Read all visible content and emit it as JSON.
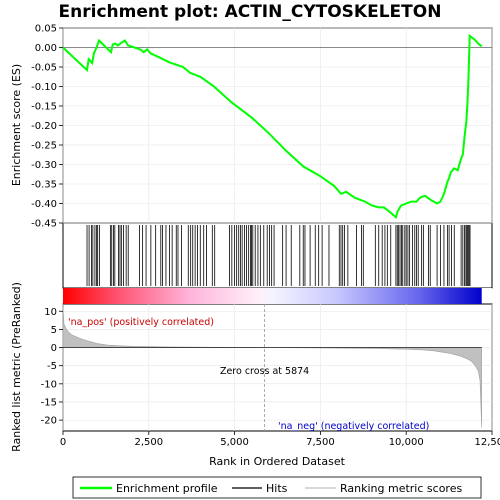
{
  "chart_data": {
    "type": "line",
    "title": "Enrichment plot: ACTIN_CYTOSKELETON",
    "xlabel": "Rank in Ordered Dataset",
    "ylabel_top": "Enrichment score (ES)",
    "ylabel_bottom": "Ranked list metric (PreRanked)",
    "xlim": [
      0,
      12500
    ],
    "x_ticks": [
      0,
      2500,
      5000,
      7500,
      10000,
      12500
    ],
    "x_tick_labels": [
      "0",
      "2,500",
      "5,000",
      "7,500",
      "10,000",
      "12,500"
    ],
    "es_ylim": [
      -0.45,
      0.05
    ],
    "es_ticks": [
      0.05,
      0.0,
      -0.05,
      -0.1,
      -0.15,
      -0.2,
      -0.25,
      -0.3,
      -0.35,
      -0.4,
      -0.45
    ],
    "es_tick_labels": [
      "0.05",
      "0.00",
      "-0.05",
      "-0.10",
      "-0.15",
      "-0.20",
      "-0.25",
      "-0.30",
      "-0.35",
      "-0.40",
      "-0.45"
    ],
    "metric_ylim": [
      -23,
      12
    ],
    "metric_ticks": [
      10,
      5,
      0,
      -5,
      -10,
      -15,
      -20
    ],
    "metric_tick_labels": [
      "10",
      "5",
      "0",
      "-5",
      "-10",
      "-15",
      "-20"
    ],
    "enrichment_profile": {
      "name": "Enrichment profile",
      "color": "#00ff00",
      "x": [
        0,
        700,
        750,
        850,
        900,
        980,
        1050,
        1400,
        1450,
        1520,
        1600,
        1700,
        1800,
        1900,
        2250,
        2350,
        2450,
        2550,
        2800,
        3100,
        3500,
        3700,
        4000,
        4400,
        4900,
        5500,
        6000,
        6500,
        7000,
        7500,
        7900,
        8100,
        8250,
        8500,
        8800,
        9000,
        9200,
        9350,
        9500,
        9700,
        9750,
        9850,
        10000,
        10150,
        10300,
        10400,
        10550,
        10700,
        10900,
        11000,
        11100,
        11200,
        11250,
        11300,
        11400,
        11500,
        11600,
        11650,
        11700,
        11750,
        11780,
        11800,
        11820,
        11850,
        12000,
        12100,
        12200
      ],
      "y": [
        0.0,
        -0.058,
        -0.03,
        -0.04,
        -0.015,
        0.0,
        0.018,
        -0.012,
        0.008,
        0.01,
        0.005,
        0.012,
        0.018,
        0.005,
        -0.005,
        -0.012,
        -0.005,
        -0.015,
        -0.025,
        -0.038,
        -0.05,
        -0.065,
        -0.075,
        -0.1,
        -0.14,
        -0.18,
        -0.22,
        -0.265,
        -0.305,
        -0.33,
        -0.355,
        -0.375,
        -0.37,
        -0.385,
        -0.395,
        -0.405,
        -0.41,
        -0.41,
        -0.42,
        -0.435,
        -0.42,
        -0.405,
        -0.4,
        -0.395,
        -0.395,
        -0.385,
        -0.38,
        -0.39,
        -0.4,
        -0.395,
        -0.375,
        -0.345,
        -0.335,
        -0.32,
        -0.31,
        -0.315,
        -0.285,
        -0.275,
        -0.23,
        -0.19,
        -0.15,
        -0.11,
        -0.06,
        0.03,
        0.02,
        0.01,
        0.003
      ]
    },
    "hits": [
      700,
      760,
      830,
      870,
      930,
      980,
      1010,
      1060,
      1380,
      1420,
      1470,
      1510,
      1620,
      1660,
      1700,
      1760,
      1840,
      1900,
      2230,
      2320,
      2420,
      2560,
      2700,
      2850,
      2900,
      3000,
      3100,
      3180,
      3300,
      3350,
      3450,
      3650,
      3720,
      3780,
      3850,
      3920,
      4000,
      4100,
      4180,
      4350,
      4420,
      4850,
      4920,
      5000,
      5060,
      5120,
      5170,
      5220,
      5290,
      5350,
      5410,
      5460,
      5490,
      5530,
      5600,
      5680,
      5750,
      5850,
      5950,
      6020,
      6080,
      6150,
      6400,
      6500,
      6650,
      6900,
      7000,
      7050,
      7200,
      7350,
      7450,
      7550,
      7750,
      8050,
      8100,
      8150,
      8200,
      8300,
      8550,
      8700,
      8750,
      9100,
      9200,
      9300,
      9380,
      9450,
      9550,
      9700,
      9740,
      9780,
      9820,
      9860,
      9900,
      9960,
      10000,
      10050,
      10100,
      10180,
      10250,
      10300,
      10350,
      10450,
      10500,
      10650,
      10700,
      10900,
      11000,
      11100,
      11200,
      11250,
      11320,
      11400,
      11600,
      11650,
      11700,
      11740,
      11770,
      11800,
      11830,
      11860
    ],
    "metric_curve": {
      "name": "Ranking metric scores",
      "color": "#c0c0c0",
      "x": [
        0,
        30,
        80,
        150,
        250,
        400,
        600,
        800,
        1000,
        1300,
        1600,
        2000,
        2500,
        3000,
        4000,
        5000,
        5874,
        7000,
        8000,
        9000,
        9500,
        10000,
        10500,
        10800,
        11000,
        11200,
        11400,
        11600,
        11800,
        11900,
        12000,
        12100,
        12150,
        12200
      ],
      "y": [
        11,
        6.5,
        5.4,
        4.4,
        3.5,
        2.9,
        2.2,
        1.6,
        1.1,
        0.7,
        0.5,
        0.35,
        0.25,
        0.18,
        0.1,
        0.05,
        0.0,
        -0.08,
        -0.15,
        -0.25,
        -0.35,
        -0.45,
        -0.65,
        -0.9,
        -1.2,
        -1.5,
        -1.9,
        -2.4,
        -3.2,
        -3.8,
        -4.8,
        -6.5,
        -9,
        -22
      ]
    },
    "zero_cross_rank": 5874,
    "annotations": {
      "pos_label": "'na_pos' (positively correlated)",
      "neg_label": "'na_neg' (negatively correlated)",
      "zero_cross": "Zero cross at 5874",
      "pos_color": "#cc0000",
      "neg_color": "#0000cc"
    },
    "legend": {
      "placement": "bottom",
      "items": [
        {
          "label": "Enrichment profile",
          "color": "#00ff00"
        },
        {
          "label": "Hits",
          "color": "#000000"
        },
        {
          "label": "Ranking metric scores",
          "color": "#c0c0c0"
        }
      ]
    }
  }
}
